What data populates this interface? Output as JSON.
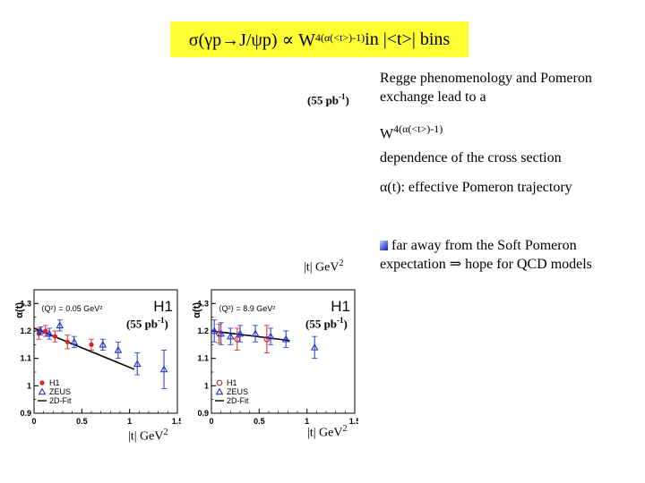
{
  "title": {
    "prefix": "σ(γp→J/ψp) ∝ W",
    "exponent": "4(α(<t>)-1)",
    "suffix": " in |<t>| bins"
  },
  "labels": {
    "lumi_top": "(55 pb",
    "lumi_plot_left": "(55 pb",
    "lumi_plot_right": "(55 pb",
    "lumi_exp": "-1",
    "lumi_close": ")",
    "t_unit_top": "|t| GeV",
    "t_unit_left": "|t| GeV",
    "t_unit_right": "|t| GeV",
    "t_unit_exp": "2"
  },
  "text": {
    "line1": "Regge phenomenology and Pomeron",
    "line2": "exchange lead to a",
    "line3_base": "W",
    "line3_exp": "4(α(<t>)-1)",
    "line4": "dependence of the cross section",
    "line5": "α(t): effective Pomeron trajectory",
    "bullet_line1": "far away from the Soft Pomeron",
    "bullet_line2": "expectation ⇒ hope for QCD models"
  },
  "colors": {
    "title_bg": "#ffff33",
    "h1": "#dd2222",
    "zeus": "#2233cc",
    "fit": "#000000"
  },
  "chart_data": [
    {
      "type": "scatter",
      "panel_label": "H1",
      "q2_text": "⟨Q²⟩ = 0.05 GeV²",
      "ylabel": "α(t)",
      "xlim": [
        0,
        1.5
      ],
      "ylim": [
        0.9,
        1.35
      ],
      "x_ticks": [
        "0",
        "0.5",
        "1",
        "1.5"
      ],
      "y_ticks": [
        "0.9",
        "1",
        "1.1",
        "1.2",
        "1.3"
      ],
      "legend": [
        "H1",
        "ZEUS",
        "2D-Fit"
      ],
      "series": [
        {
          "name": "H1",
          "marker": "filled-circle",
          "x": [
            0.05,
            0.12,
            0.22,
            0.35,
            0.6
          ],
          "y": [
            1.19,
            1.2,
            1.18,
            1.16,
            1.15
          ],
          "err": [
            0.02,
            0.02,
            0.02,
            0.025,
            0.02
          ]
        },
        {
          "name": "ZEUS",
          "marker": "open-triangle",
          "x": [
            0.07,
            0.16,
            0.27,
            0.42,
            0.72,
            0.88,
            1.08,
            1.36
          ],
          "y": [
            1.2,
            1.19,
            1.22,
            1.16,
            1.15,
            1.13,
            1.08,
            1.06
          ],
          "err": [
            0.015,
            0.02,
            0.02,
            0.02,
            0.02,
            0.03,
            0.04,
            0.07
          ]
        }
      ],
      "fit": {
        "x": [
          0.0,
          1.05
        ],
        "y": [
          1.21,
          1.06
        ]
      }
    },
    {
      "type": "scatter",
      "panel_label": "H1",
      "q2_text": "⟨Q²⟩ = 8.9 GeV²",
      "ylabel": "α(t)",
      "xlim": [
        0,
        1.5
      ],
      "ylim": [
        0.9,
        1.35
      ],
      "x_ticks": [
        "0",
        "0.5",
        "1",
        "1.5"
      ],
      "y_ticks": [
        "0.9",
        "1",
        "1.1",
        "1.2",
        "1.3"
      ],
      "legend": [
        "H1",
        "ZEUS",
        "2D-Fit"
      ],
      "series": [
        {
          "name": "H1",
          "marker": "open-circle",
          "x": [
            0.08,
            0.27,
            0.58
          ],
          "y": [
            1.19,
            1.17,
            1.17
          ],
          "err": [
            0.035,
            0.04,
            0.05
          ]
        },
        {
          "name": "ZEUS",
          "marker": "open-triangle",
          "x": [
            0.03,
            0.1,
            0.2,
            0.3,
            0.46,
            0.62,
            0.78,
            1.08
          ],
          "y": [
            1.2,
            1.19,
            1.18,
            1.19,
            1.19,
            1.18,
            1.17,
            1.14
          ],
          "err": [
            0.04,
            0.04,
            0.03,
            0.03,
            0.03,
            0.03,
            0.03,
            0.04
          ]
        }
      ],
      "fit": {
        "x": [
          0.0,
          0.82
        ],
        "y": [
          1.2,
          1.165
        ]
      }
    }
  ]
}
